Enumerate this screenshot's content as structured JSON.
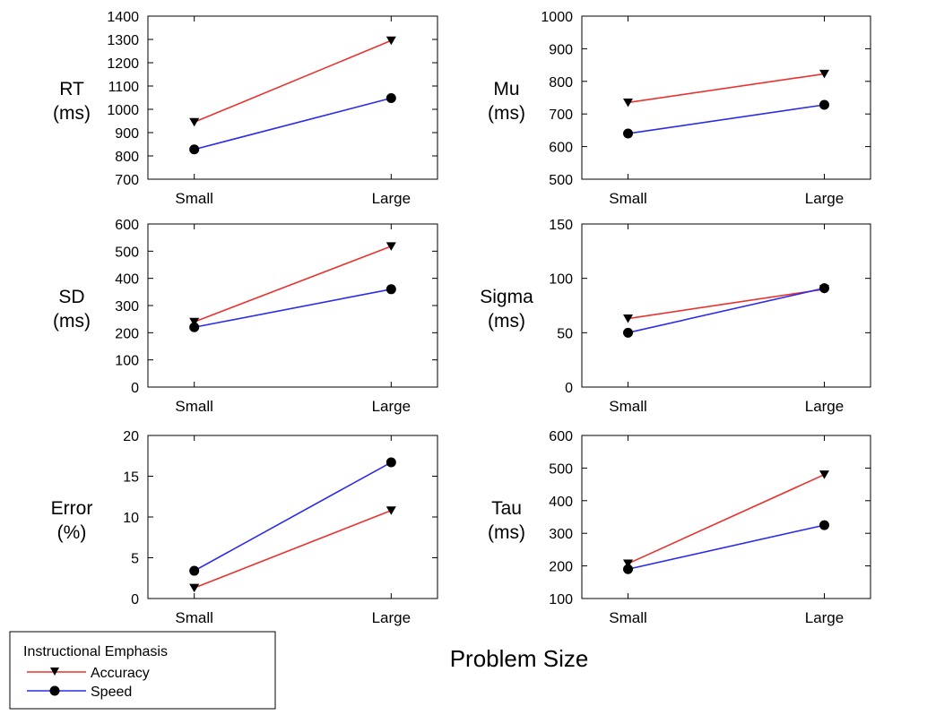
{
  "colors": {
    "accuracy": "#e8332f",
    "speed": "#2b2be8",
    "marker": "#000000"
  },
  "legend": {
    "title": "Instructional Emphasis",
    "entries": [
      {
        "label": "Accuracy",
        "series": "accuracy",
        "marker": "triangle-down"
      },
      {
        "label": "Speed",
        "series": "speed",
        "marker": "circle"
      }
    ]
  },
  "xlabel": "Problem Size",
  "chart_data": [
    {
      "id": "rt",
      "type": "line",
      "ylabel_lines": [
        "RT",
        "(ms)"
      ],
      "categories": [
        "Small",
        "Large"
      ],
      "ylim": [
        700,
        1400
      ],
      "yticks": [
        700,
        800,
        900,
        1000,
        1100,
        1200,
        1300,
        1400
      ],
      "series": [
        {
          "name": "Accuracy",
          "key": "accuracy",
          "values": [
            945,
            1295
          ]
        },
        {
          "name": "Speed",
          "key": "speed",
          "values": [
            828,
            1048
          ]
        }
      ]
    },
    {
      "id": "mu",
      "type": "line",
      "ylabel_lines": [
        "Mu",
        "(ms)"
      ],
      "categories": [
        "Small",
        "Large"
      ],
      "ylim": [
        500,
        1000
      ],
      "yticks": [
        500,
        600,
        700,
        800,
        900,
        1000
      ],
      "series": [
        {
          "name": "Accuracy",
          "key": "accuracy",
          "values": [
            735,
            823
          ]
        },
        {
          "name": "Speed",
          "key": "speed",
          "values": [
            640,
            728
          ]
        }
      ]
    },
    {
      "id": "sd",
      "type": "line",
      "ylabel_lines": [
        "SD",
        "(ms)"
      ],
      "categories": [
        "Small",
        "Large"
      ],
      "ylim": [
        0,
        600
      ],
      "yticks": [
        0,
        100,
        200,
        300,
        400,
        500,
        600
      ],
      "series": [
        {
          "name": "Accuracy",
          "key": "accuracy",
          "values": [
            240,
            518
          ]
        },
        {
          "name": "Speed",
          "key": "speed",
          "values": [
            220,
            360
          ]
        }
      ]
    },
    {
      "id": "sigma",
      "type": "line",
      "ylabel_lines": [
        "Sigma",
        "(ms)"
      ],
      "categories": [
        "Small",
        "Large"
      ],
      "ylim": [
        0,
        150
      ],
      "yticks": [
        0,
        50,
        100,
        150
      ],
      "series": [
        {
          "name": "Accuracy",
          "key": "accuracy",
          "values": [
            63,
            90
          ]
        },
        {
          "name": "Speed",
          "key": "speed",
          "values": [
            50,
            91
          ]
        }
      ]
    },
    {
      "id": "error",
      "type": "line",
      "ylabel_lines": [
        "Error",
        "(%)"
      ],
      "categories": [
        "Small",
        "Large"
      ],
      "ylim": [
        0,
        20
      ],
      "yticks": [
        0,
        5,
        10,
        15,
        20
      ],
      "series": [
        {
          "name": "Accuracy",
          "key": "accuracy",
          "values": [
            1.3,
            10.8
          ]
        },
        {
          "name": "Speed",
          "key": "speed",
          "values": [
            3.4,
            16.7
          ]
        }
      ]
    },
    {
      "id": "tau",
      "type": "line",
      "ylabel_lines": [
        "Tau",
        "(ms)"
      ],
      "categories": [
        "Small",
        "Large"
      ],
      "ylim": [
        100,
        600
      ],
      "yticks": [
        100,
        200,
        300,
        400,
        500,
        600
      ],
      "series": [
        {
          "name": "Accuracy",
          "key": "accuracy",
          "values": [
            207,
            480
          ]
        },
        {
          "name": "Speed",
          "key": "speed",
          "values": [
            190,
            325
          ]
        }
      ]
    }
  ]
}
